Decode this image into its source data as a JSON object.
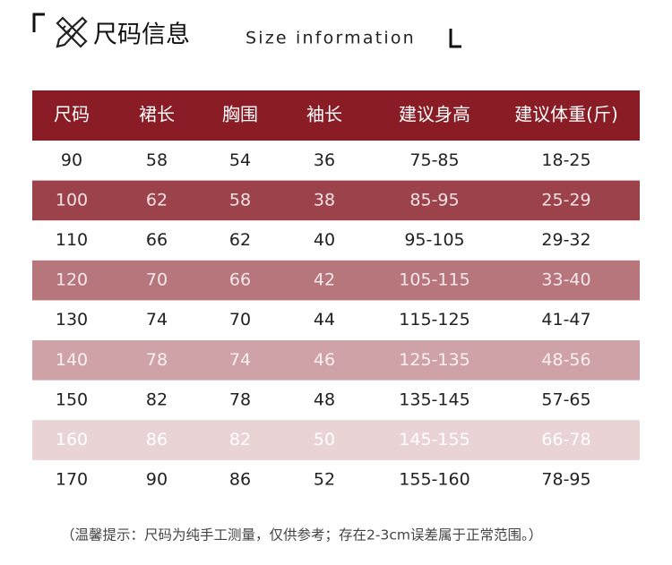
{
  "header": {
    "title": "尺码信息",
    "subtitle": "Size information"
  },
  "table": {
    "columns": [
      "尺码",
      "裙长",
      "胸围",
      "袖长",
      "建议身高",
      "建议体重(斤)"
    ],
    "rows": [
      [
        90,
        58,
        54,
        36,
        "75-85",
        "18-25"
      ],
      [
        100,
        62,
        58,
        38,
        "85-95",
        "25-29"
      ],
      [
        110,
        66,
        62,
        40,
        "95-105",
        "29-32"
      ],
      [
        120,
        70,
        66,
        42,
        "105-115",
        "33-40"
      ],
      [
        130,
        74,
        70,
        44,
        "115-125",
        "41-47"
      ],
      [
        140,
        78,
        74,
        46,
        "125-135",
        "48-56"
      ],
      [
        150,
        82,
        78,
        48,
        "135-145",
        "57-65"
      ],
      [
        160,
        86,
        82,
        50,
        "145-155",
        "66-78"
      ],
      [
        170,
        90,
        86,
        52,
        "155-160",
        "78-95"
      ]
    ]
  },
  "footnote": "（温馨提示：尺码为纯手工测量，仅供参考；存在2-3cm误差属于正常范围。）"
}
